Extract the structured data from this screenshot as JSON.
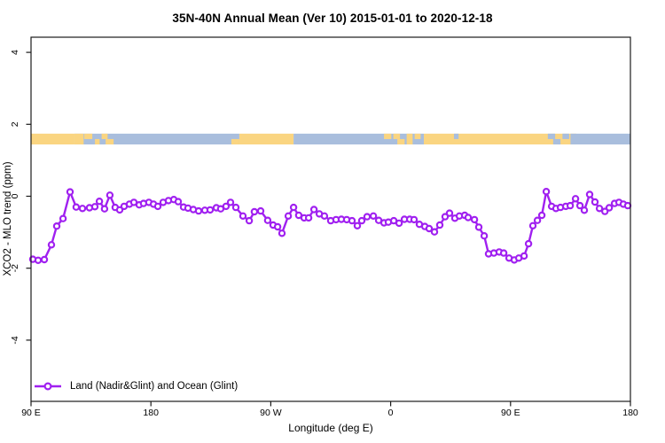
{
  "page": {
    "background": "#ffffff"
  },
  "chart_data": {
    "type": "line",
    "title": "35N-40N Annual Mean (Ver 10)   2015-01-01 to 2020-12-18",
    "xlabel": "Longitude (deg E)",
    "ylabel": "XCO2 - MLO trend (ppm)",
    "xlim": [
      90,
      540
    ],
    "ylim": [
      -5.7,
      4.42
    ],
    "grid": false,
    "x_ticks": [
      {
        "label": "90 E",
        "lon": 90
      },
      {
        "label": "180",
        "lon": 180
      },
      {
        "label": "90 W",
        "lon": 270
      },
      {
        "label": "0",
        "lon": 360
      },
      {
        "label": "90 E",
        "lon": 450
      },
      {
        "label": "180",
        "lon": 540
      }
    ],
    "y_ticks": [
      {
        "label": "4",
        "value": 4
      },
      {
        "label": "2",
        "value": 2
      },
      {
        "label": "0",
        "value": 0
      },
      {
        "label": "-2",
        "value": -2
      },
      {
        "label": "-4",
        "value": -4
      }
    ],
    "legend": {
      "position": "bottom-left",
      "label": "Land (Nadir&Glint) and Ocean (Glint)"
    },
    "band": {
      "y_top_ppm": 1.74,
      "y_bottom_ppm": 1.44,
      "land_color": "#FAD581",
      "ocean_color": "#A9BEDD",
      "segments": [
        [
          90,
          122.6,
          "land"
        ],
        [
          122.6,
          246.4,
          "ocean"
        ],
        [
          246.4,
          287.1,
          "land"
        ],
        [
          287.1,
          384.9,
          "ocean"
        ],
        [
          384.9,
          499.4,
          "land"
        ],
        [
          499.4,
          540,
          "ocean"
        ]
      ],
      "patches": [
        [
          122.6,
          129.5,
          "land",
          "full"
        ],
        [
          130,
          136,
          "land",
          "top"
        ],
        [
          138,
          141.5,
          "land",
          "bottom"
        ],
        [
          143,
          147.5,
          "land",
          "top"
        ],
        [
          146,
          152,
          "land",
          "bottom"
        ],
        [
          240.4,
          246.4,
          "land",
          "bottom"
        ],
        [
          355,
          360.5,
          "land",
          "top"
        ],
        [
          362,
          367,
          "land",
          "top"
        ],
        [
          365,
          370.5,
          "land",
          "bottom"
        ],
        [
          372,
          376.5,
          "land",
          "full"
        ],
        [
          378,
          382.5,
          "land",
          "top"
        ],
        [
          407.5,
          411,
          "ocean",
          "top"
        ],
        [
          478,
          483.5,
          "ocean",
          "top"
        ],
        [
          482,
          487.5,
          "ocean",
          "bottom"
        ],
        [
          489,
          494,
          "ocean",
          "top"
        ],
        [
          495,
          499.4,
          "ocean",
          "full"
        ]
      ]
    },
    "series": [
      {
        "name": "Land (Nadir&Glint) and Ocean (Glint)",
        "color": "#A020F0",
        "marker": "open-circle",
        "points": [
          [
            91.3,
            -1.75
          ],
          [
            95.3,
            -1.78
          ],
          [
            100,
            -1.76
          ],
          [
            105.3,
            -1.35
          ],
          [
            109.3,
            -0.83
          ],
          [
            114,
            -0.62
          ],
          [
            119.3,
            0.12
          ],
          [
            123.9,
            -0.3
          ],
          [
            128.6,
            -0.34
          ],
          [
            133.9,
            -0.32
          ],
          [
            137.9,
            -0.29
          ],
          [
            141.3,
            -0.14
          ],
          [
            145.2,
            -0.35
          ],
          [
            149.2,
            0.03
          ],
          [
            153.2,
            -0.31
          ],
          [
            156.6,
            -0.38
          ],
          [
            159.9,
            -0.28
          ],
          [
            163.9,
            -0.22
          ],
          [
            167.2,
            -0.17
          ],
          [
            171.2,
            -0.24
          ],
          [
            174.5,
            -0.2
          ],
          [
            178.5,
            -0.17
          ],
          [
            181.9,
            -0.22
          ],
          [
            185.2,
            -0.28
          ],
          [
            189.2,
            -0.17
          ],
          [
            193.2,
            -0.12
          ],
          [
            197.2,
            -0.09
          ],
          [
            200.5,
            -0.15
          ],
          [
            204.5,
            -0.3
          ],
          [
            207.8,
            -0.33
          ],
          [
            211.8,
            -0.37
          ],
          [
            215.8,
            -0.41
          ],
          [
            220.5,
            -0.39
          ],
          [
            224.5,
            -0.38
          ],
          [
            229.1,
            -0.32
          ],
          [
            232.4,
            -0.35
          ],
          [
            236.4,
            -0.28
          ],
          [
            239.8,
            -0.17
          ],
          [
            243.8,
            -0.31
          ],
          [
            249.1,
            -0.55
          ],
          [
            253.8,
            -0.68
          ],
          [
            257.7,
            -0.43
          ],
          [
            262.4,
            -0.41
          ],
          [
            267.7,
            -0.67
          ],
          [
            271.7,
            -0.8
          ],
          [
            275.1,
            -0.85
          ],
          [
            278.4,
            -1.03
          ],
          [
            283.1,
            -0.55
          ],
          [
            287.1,
            -0.31
          ],
          [
            291,
            -0.53
          ],
          [
            295,
            -0.6
          ],
          [
            298.4,
            -0.6
          ],
          [
            302.4,
            -0.37
          ],
          [
            306.4,
            -0.49
          ],
          [
            310.3,
            -0.55
          ],
          [
            315,
            -0.68
          ],
          [
            319,
            -0.65
          ],
          [
            323,
            -0.64
          ],
          [
            327,
            -0.65
          ],
          [
            331,
            -0.68
          ],
          [
            335,
            -0.82
          ],
          [
            338.3,
            -0.68
          ],
          [
            342.3,
            -0.57
          ],
          [
            347,
            -0.55
          ],
          [
            351,
            -0.67
          ],
          [
            355,
            -0.74
          ],
          [
            358.3,
            -0.72
          ],
          [
            362.3,
            -0.68
          ],
          [
            366.3,
            -0.75
          ],
          [
            370.3,
            -0.64
          ],
          [
            374.3,
            -0.64
          ],
          [
            377.6,
            -0.65
          ],
          [
            381.6,
            -0.78
          ],
          [
            385.6,
            -0.84
          ],
          [
            388.9,
            -0.9
          ],
          [
            392.9,
            -0.99
          ],
          [
            396.9,
            -0.8
          ],
          [
            400.9,
            -0.57
          ],
          [
            404.2,
            -0.47
          ],
          [
            408.2,
            -0.61
          ],
          [
            411.6,
            -0.55
          ],
          [
            415.6,
            -0.53
          ],
          [
            418.2,
            -0.59
          ],
          [
            422.9,
            -0.65
          ],
          [
            426.2,
            -0.86
          ],
          [
            430.2,
            -1.1
          ],
          [
            433.5,
            -1.6
          ],
          [
            437.5,
            -1.58
          ],
          [
            441.5,
            -1.55
          ],
          [
            444.9,
            -1.58
          ],
          [
            448.9,
            -1.72
          ],
          [
            452.8,
            -1.77
          ],
          [
            456.2,
            -1.72
          ],
          [
            460.2,
            -1.66
          ],
          [
            463.5,
            -1.32
          ],
          [
            466.8,
            -0.82
          ],
          [
            470.2,
            -0.67
          ],
          [
            473.5,
            -0.53
          ],
          [
            476.8,
            0.13
          ],
          [
            480.8,
            -0.28
          ],
          [
            484.1,
            -0.34
          ],
          [
            487.5,
            -0.31
          ],
          [
            491.5,
            -0.28
          ],
          [
            494.8,
            -0.26
          ],
          [
            498.8,
            -0.07
          ],
          [
            502.1,
            -0.26
          ],
          [
            505.4,
            -0.39
          ],
          [
            509.4,
            0.05
          ],
          [
            513.4,
            -0.16
          ],
          [
            516.8,
            -0.34
          ],
          [
            520.8,
            -0.42
          ],
          [
            524.1,
            -0.32
          ],
          [
            528.1,
            -0.2
          ],
          [
            531.4,
            -0.17
          ],
          [
            534.7,
            -0.22
          ],
          [
            538,
            -0.26
          ]
        ]
      }
    ],
    "frame_color": "#1a1a1a"
  }
}
